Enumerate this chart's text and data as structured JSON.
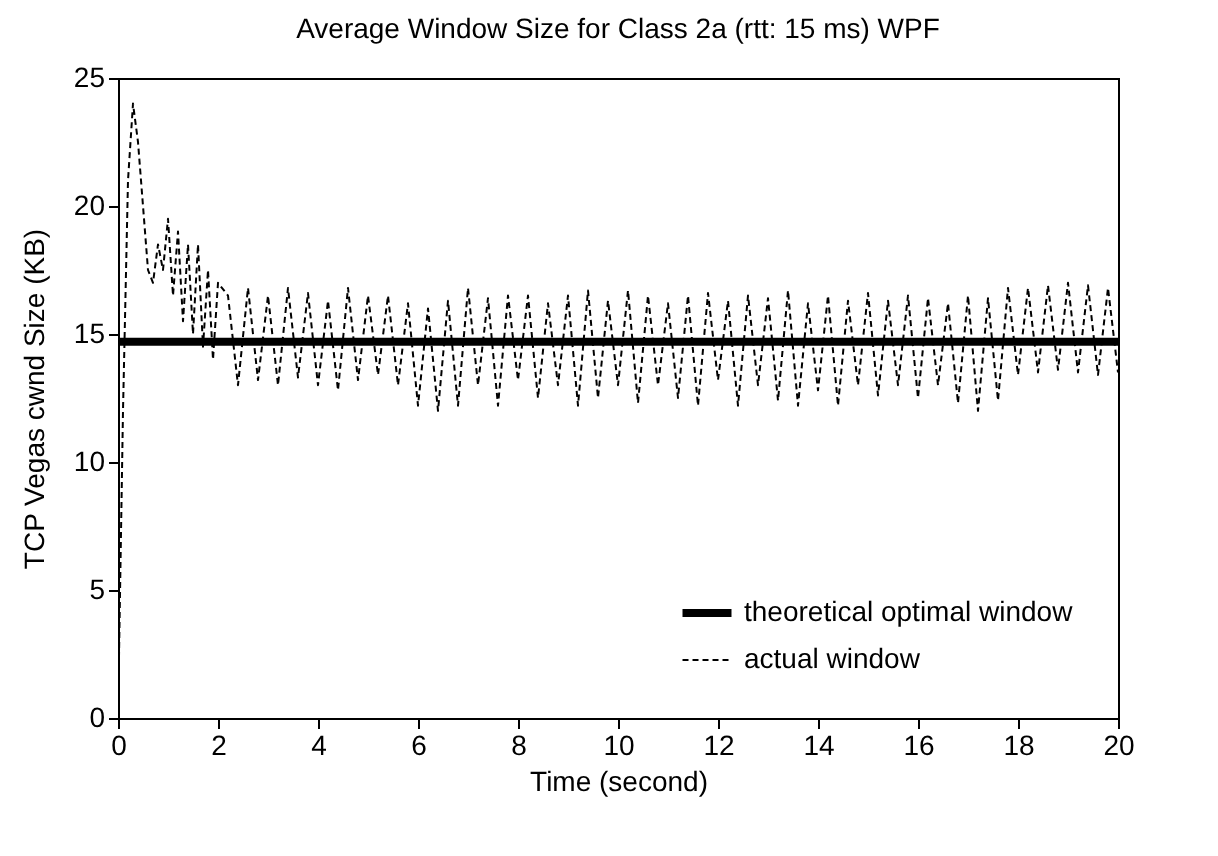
{
  "chart_data": {
    "type": "line",
    "title": "Average Window Size for Class 2a (rtt: 15 ms) WPF",
    "xlabel": "Time (second)",
    "ylabel": "TCP Vegas cwnd Size (KB)",
    "xlim": [
      0,
      20
    ],
    "xticks": [
      0,
      2,
      4,
      6,
      8,
      10,
      12,
      14,
      16,
      18,
      20
    ],
    "ylim": [
      0,
      25
    ],
    "yticks": [
      0,
      5,
      10,
      15,
      20,
      25
    ],
    "legend": "bottom right",
    "series": [
      {
        "name": "theoretical optimal window",
        "color": "#000000",
        "line_style": "solid",
        "x": [
          0,
          20
        ],
        "values": [
          14.7,
          14.7
        ]
      },
      {
        "name": "actual window",
        "color": "#000000",
        "line_style": "dashed",
        "x": [
          0,
          0.1,
          0.2,
          0.3,
          0.4,
          0.5,
          0.6,
          0.7,
          0.8,
          0.9,
          1.0,
          1.1,
          1.2,
          1.3,
          1.4,
          1.5,
          1.6,
          1.7,
          1.8,
          1.9,
          2.0,
          2.2,
          2.4,
          2.6,
          2.8,
          3.0,
          3.2,
          3.4,
          3.6,
          3.8,
          4.0,
          4.2,
          4.4,
          4.6,
          4.8,
          5.0,
          5.2,
          5.4,
          5.6,
          5.8,
          6.0,
          6.2,
          6.4,
          6.6,
          6.8,
          7.0,
          7.2,
          7.4,
          7.6,
          7.8,
          8.0,
          8.2,
          8.4,
          8.6,
          8.8,
          9.0,
          9.2,
          9.4,
          9.6,
          9.8,
          10.0,
          10.2,
          10.4,
          10.6,
          10.8,
          11.0,
          11.2,
          11.4,
          11.6,
          11.8,
          12.0,
          12.2,
          12.4,
          12.6,
          12.8,
          13.0,
          13.2,
          13.4,
          13.6,
          13.8,
          14.0,
          14.2,
          14.4,
          14.6,
          14.8,
          15.0,
          15.2,
          15.4,
          15.6,
          15.8,
          16.0,
          16.2,
          16.4,
          16.6,
          16.8,
          17.0,
          17.2,
          17.4,
          17.6,
          17.8,
          18.0,
          18.2,
          18.4,
          18.6,
          18.8,
          19.0,
          19.2,
          19.4,
          19.6,
          19.8,
          20.0
        ],
        "values": [
          0,
          12,
          21,
          24,
          22.5,
          20,
          17.5,
          17,
          18.5,
          17.5,
          19.5,
          16.5,
          19,
          15.5,
          18.5,
          15,
          18.5,
          14.5,
          17.5,
          14,
          17,
          16.5,
          13,
          16.8,
          13.2,
          16.5,
          13,
          16.8,
          13.3,
          16.6,
          13,
          16.3,
          12.8,
          16.8,
          13.2,
          16.5,
          13.4,
          16.5,
          13,
          16.2,
          12.2,
          16,
          12,
          16.3,
          12.2,
          16.8,
          13,
          16.4,
          12.2,
          16.5,
          13.2,
          16.5,
          12.5,
          16.2,
          13,
          16.5,
          12.2,
          16.7,
          12.5,
          16.3,
          13,
          16.7,
          12.3,
          16.5,
          13,
          16.2,
          12.5,
          16.5,
          12.2,
          16.6,
          13.2,
          16.3,
          12.2,
          16.5,
          13,
          16.4,
          12.4,
          16.7,
          12.2,
          16.2,
          12.8,
          16.5,
          12.2,
          16.3,
          13,
          16.6,
          12.6,
          16.3,
          13,
          16.5,
          12.5,
          16.4,
          13,
          16.2,
          12.3,
          16.5,
          12,
          16.4,
          12.4,
          16.8,
          13.4,
          16.8,
          13.5,
          16.9,
          13.6,
          17,
          13.5,
          16.9,
          13.4,
          16.8,
          13.5
        ]
      }
    ]
  }
}
